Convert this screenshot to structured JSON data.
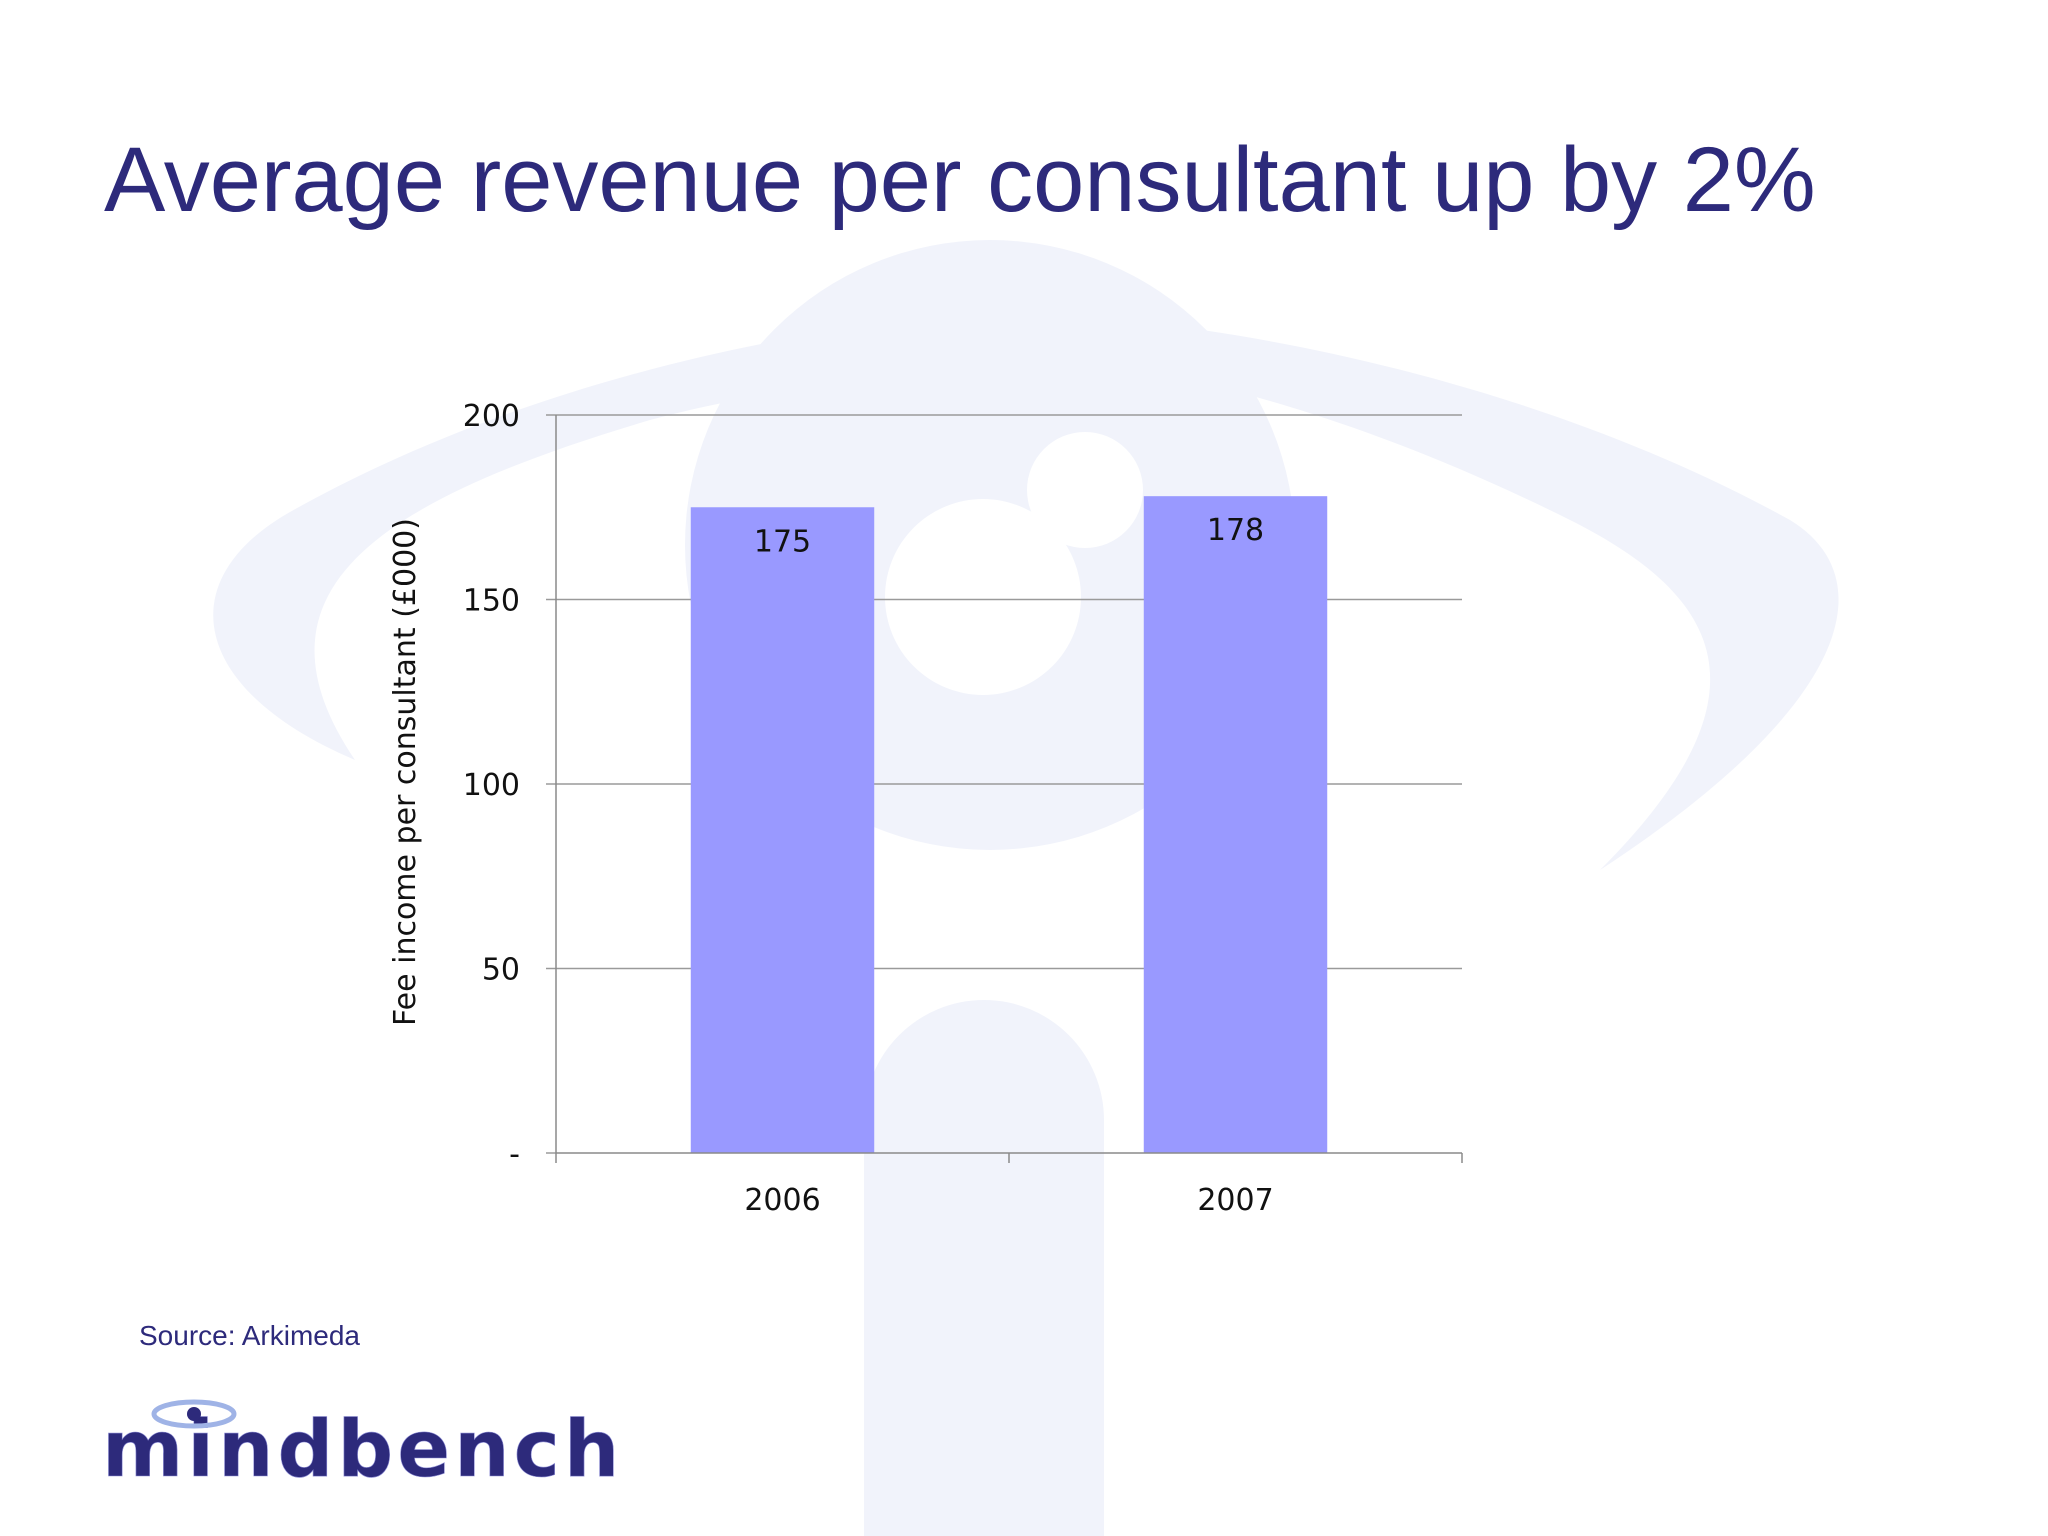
{
  "slide": {
    "title": "Average revenue per consultant up by 2%",
    "source": "Source:  Arkimeda",
    "logo_text": "mindbench"
  },
  "colors": {
    "title": "#2d2a7b",
    "bar": "#9999ff",
    "gridline": "#9a9a9a",
    "watermark": "#f1f3fb",
    "logo_text": "#2d2a7b",
    "logo_accent": "#9fb3e6"
  },
  "chart_data": {
    "type": "bar",
    "categories": [
      "2006",
      "2007"
    ],
    "values": [
      175,
      178
    ],
    "data_labels": [
      "175",
      "178"
    ],
    "title": "",
    "xlabel": "",
    "ylabel": "Fee income per consultant (£000)",
    "ylim": [
      0,
      200
    ],
    "yticks": [
      0,
      50,
      100,
      150,
      200
    ],
    "ytick_labels": [
      "-",
      "50",
      "100",
      "150",
      "200"
    ],
    "grid": true,
    "legend": "none"
  }
}
